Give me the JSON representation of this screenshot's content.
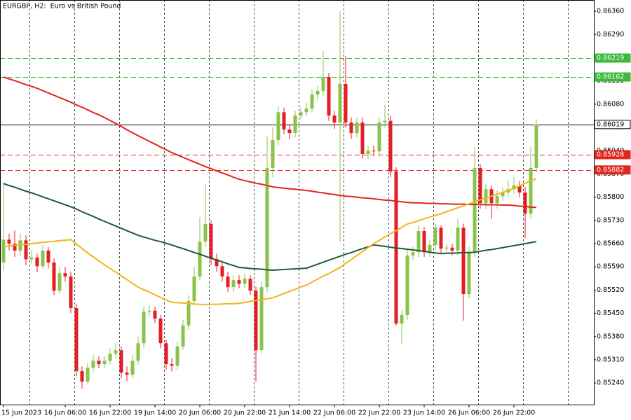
{
  "chart_data": {
    "type": "candlestick",
    "title": "EURGBP, H2:  Euro vs British Pound",
    "categories": [
      "15 Jun 2023",
      null,
      null,
      null,
      null,
      null,
      null,
      null,
      null,
      null,
      null,
      "16 Jun 06:00",
      null,
      null,
      null,
      null,
      null,
      null,
      null,
      "16 Jun 22:00",
      null,
      null,
      null,
      null,
      null,
      null,
      null,
      "19 Jun 14:00",
      null,
      null,
      null,
      null,
      null,
      null,
      null,
      "20 Jun 06:00",
      null,
      null,
      null,
      null,
      null,
      null,
      null,
      "20 Jun 22:00",
      null,
      null,
      null,
      null,
      null,
      null,
      null,
      "21 Jun 14:00",
      null,
      null,
      null,
      null,
      null,
      null,
      null,
      "22 Jun 06:00",
      null,
      null,
      null,
      null,
      null,
      null,
      null,
      "22 Jun 22:00",
      null,
      null,
      null,
      null,
      null,
      null,
      null,
      "23 Jun 14:00",
      null,
      null,
      null,
      null,
      null,
      null,
      null,
      "26 Jun 06:00",
      null,
      null,
      null,
      null,
      null,
      null,
      null,
      "26 Jun 22:00",
      null,
      null,
      null,
      null
    ],
    "open": [
      0.85603,
      0.85672,
      0.8566,
      0.85639,
      0.8567,
      0.85613,
      0.85618,
      0.85592,
      0.85639,
      0.85603,
      0.85518,
      0.85571,
      0.85561,
      0.85466,
      0.85276,
      0.85244,
      0.85286,
      0.85307,
      0.85297,
      0.85307,
      0.85328,
      0.85339,
      0.85271,
      0.85265,
      0.85307,
      0.8536,
      0.85455,
      0.85458,
      0.85434,
      0.8536,
      0.85297,
      0.85292,
      0.8535,
      0.85413,
      0.85487,
      0.85561,
      0.85666,
      0.85719,
      0.85613,
      0.85592,
      0.85561,
      0.85529,
      0.8555,
      0.85539,
      0.85554,
      0.85518,
      0.85339,
      0.85529,
      0.85888,
      0.85972,
      0.86056,
      0.86004,
      0.85993,
      0.86046,
      0.86056,
      0.86067,
      0.86109,
      0.8612,
      0.86162,
      0.86046,
      0.86025,
      0.86141,
      0.86025,
      0.85993,
      0.86025,
      0.8593,
      0.8594,
      0.85938,
      0.86025,
      0.8603,
      0.85877,
      0.85419,
      0.85445,
      0.85624,
      0.85634,
      0.85698,
      0.85634,
      0.85656,
      0.85708,
      0.85645,
      0.85648,
      0.85639,
      0.85708,
      0.85508,
      0.85634,
      0.85888,
      0.85782,
      0.85824,
      0.85782,
      0.85803,
      0.85814,
      0.85824,
      0.85835,
      0.85814,
      0.8575,
      0.85888
    ],
    "high": [
      0.85841,
      0.8569,
      0.857,
      0.8569,
      0.85685,
      0.8564,
      0.8563,
      0.85655,
      0.8565,
      0.85615,
      0.8559,
      0.8559,
      0.85575,
      0.8548,
      0.8529,
      0.853,
      0.85325,
      0.8532,
      0.8532,
      0.85345,
      0.8536,
      0.8535,
      0.8529,
      0.85325,
      0.8538,
      0.8547,
      0.85475,
      0.8547,
      0.85445,
      0.8537,
      0.85315,
      0.85365,
      0.8543,
      0.85505,
      0.8559,
      0.8574,
      0.85841,
      0.8573,
      0.8563,
      0.85605,
      0.85575,
      0.85565,
      0.85565,
      0.8557,
      0.85565,
      0.8553,
      0.85545,
      0.85983,
      0.8601,
      0.86075,
      0.8607,
      0.8602,
      0.8606,
      0.8607,
      0.86085,
      0.86125,
      0.86135,
      0.8624,
      0.86175,
      0.8606,
      0.8636,
      0.86225,
      0.8604,
      0.8604,
      0.8604,
      0.85955,
      0.85955,
      0.8604,
      0.86078,
      0.86045,
      0.8589,
      0.8546,
      0.8564,
      0.8565,
      0.85715,
      0.8571,
      0.8567,
      0.8572,
      0.85715,
      0.8566,
      0.8566,
      0.85735,
      0.8572,
      0.8565,
      0.85951,
      0.859,
      0.8584,
      0.85835,
      0.8582,
      0.8583,
      0.8585,
      0.8586,
      0.8585,
      0.8583,
      0.85951,
      0.86035
    ],
    "low": [
      0.8558,
      0.8564,
      0.8562,
      0.85625,
      0.85595,
      0.85598,
      0.85575,
      0.85585,
      0.85585,
      0.85505,
      0.8551,
      0.85545,
      0.8545,
      0.8526,
      0.85223,
      0.85235,
      0.85275,
      0.85285,
      0.85285,
      0.85295,
      0.85315,
      0.85255,
      0.85245,
      0.85255,
      0.85295,
      0.85345,
      0.8544,
      0.8542,
      0.85345,
      0.8528,
      0.85275,
      0.8528,
      0.8534,
      0.854,
      0.85475,
      0.8555,
      0.8565,
      0.85595,
      0.85575,
      0.85545,
      0.85515,
      0.85515,
      0.85525,
      0.85525,
      0.85505,
      0.85244,
      0.8533,
      0.85515,
      0.8586,
      0.85955,
      0.8599,
      0.85975,
      0.8598,
      0.86035,
      0.86045,
      0.86055,
      0.86095,
      0.86105,
      0.8603,
      0.86005,
      0.85666,
      0.8601,
      0.85975,
      0.8598,
      0.85915,
      0.85915,
      0.85925,
      0.85925,
      0.8601,
      0.8586,
      0.85413,
      0.85356,
      0.8543,
      0.8561,
      0.8562,
      0.8562,
      0.8562,
      0.8564,
      0.8563,
      0.85635,
      0.85625,
      0.85625,
      0.85428,
      0.85495,
      0.8562,
      0.85765,
      0.85765,
      0.85735,
      0.85765,
      0.8579,
      0.858,
      0.8581,
      0.858,
      0.85677,
      0.85735,
      0.85875
    ],
    "close": [
      0.85672,
      0.8566,
      0.85639,
      0.8567,
      0.85613,
      0.85618,
      0.85592,
      0.85639,
      0.85603,
      0.85518,
      0.85571,
      0.85561,
      0.85466,
      0.85276,
      0.85244,
      0.85286,
      0.85307,
      0.85297,
      0.85307,
      0.85328,
      0.85339,
      0.85271,
      0.85265,
      0.85307,
      0.8536,
      0.85455,
      0.85458,
      0.85434,
      0.8536,
      0.85297,
      0.85292,
      0.8535,
      0.85413,
      0.85487,
      0.85561,
      0.85666,
      0.85719,
      0.85613,
      0.85592,
      0.85561,
      0.85529,
      0.8555,
      0.85539,
      0.85554,
      0.85518,
      0.85339,
      0.85529,
      0.85888,
      0.85972,
      0.86056,
      0.86004,
      0.85993,
      0.86046,
      0.86056,
      0.86067,
      0.86109,
      0.8612,
      0.86162,
      0.86046,
      0.86025,
      0.86141,
      0.86025,
      0.85993,
      0.86025,
      0.8593,
      0.8594,
      0.85938,
      0.86025,
      0.8603,
      0.85877,
      0.85419,
      0.85445,
      0.85624,
      0.85634,
      0.85698,
      0.85634,
      0.85656,
      0.85708,
      0.85645,
      0.85648,
      0.85639,
      0.85708,
      0.85508,
      0.85634,
      0.85888,
      0.85782,
      0.85824,
      0.85782,
      0.85803,
      0.85814,
      0.85824,
      0.85835,
      0.85814,
      0.8575,
      0.85888,
      0.86019
    ],
    "up_color": "#8bc34a",
    "down_color": "#e41e26",
    "series": [
      {
        "color": "#e0261f",
        "values": [
          0.86162,
          0.86156,
          0.86151,
          0.86145,
          0.86139,
          0.86134,
          0.86128,
          0.86121,
          0.86114,
          0.86107,
          0.861,
          0.86093,
          0.86086,
          0.86078,
          0.86071,
          0.86063,
          0.86055,
          0.86048,
          0.8604,
          0.86031,
          0.86022,
          0.86013,
          0.86003,
          0.85994,
          0.85985,
          0.85977,
          0.85968,
          0.8596,
          0.85951,
          0.85943,
          0.85934,
          0.85927,
          0.8592,
          0.85913,
          0.85906,
          0.85899,
          0.85892,
          0.85886,
          0.85879,
          0.85873,
          0.85867,
          0.8586,
          0.85854,
          0.8585,
          0.85846,
          0.85842,
          0.85839,
          0.85835,
          0.85831,
          0.85829,
          0.85827,
          0.85825,
          0.85824,
          0.85822,
          0.8582,
          0.85818,
          0.85815,
          0.85813,
          0.8581,
          0.85808,
          0.85805,
          0.85803,
          0.85802,
          0.858,
          0.85798,
          0.85797,
          0.85795,
          0.85793,
          0.85791,
          0.8579,
          0.85788,
          0.85786,
          0.85784,
          0.85783,
          0.85783,
          0.85782,
          0.85781,
          0.85781,
          0.8578,
          0.8578,
          0.85779,
          0.85779,
          0.85779,
          0.85778,
          0.85778,
          0.85778,
          0.85777,
          0.85777,
          0.85777,
          0.85776,
          0.85776,
          0.85775,
          0.85773,
          0.85772,
          0.8577,
          0.85769
        ]
      },
      {
        "color": "#1e5a3c",
        "values": [
          0.85841,
          0.85835,
          0.8583,
          0.85824,
          0.85818,
          0.85813,
          0.85807,
          0.85801,
          0.85795,
          0.85789,
          0.85783,
          0.85777,
          0.85771,
          0.85764,
          0.85756,
          0.85749,
          0.85742,
          0.85734,
          0.85727,
          0.8572,
          0.85713,
          0.85706,
          0.85699,
          0.85692,
          0.85685,
          0.8568,
          0.85675,
          0.8567,
          0.85666,
          0.85661,
          0.85656,
          0.8565,
          0.85645,
          0.85639,
          0.85633,
          0.85628,
          0.85622,
          0.85616,
          0.85611,
          0.85605,
          0.85599,
          0.85594,
          0.85588,
          0.85587,
          0.85585,
          0.85584,
          0.85583,
          0.85581,
          0.8558,
          0.85581,
          0.85582,
          0.85583,
          0.85584,
          0.85585,
          0.85586,
          0.85592,
          0.85598,
          0.85604,
          0.8561,
          0.85616,
          0.85622,
          0.85628,
          0.85633,
          0.85639,
          0.85645,
          0.8565,
          0.85656,
          0.85654,
          0.85652,
          0.85649,
          0.85647,
          0.85645,
          0.85643,
          0.85641,
          0.85639,
          0.85637,
          0.85634,
          0.85632,
          0.8563,
          0.85631,
          0.85631,
          0.85632,
          0.85633,
          0.85633,
          0.85634,
          0.85637,
          0.8564,
          0.85642,
          0.85645,
          0.85648,
          0.85651,
          0.85654,
          0.85657,
          0.8566,
          0.85663,
          0.85666
        ]
      },
      {
        "color": "#f2b51b",
        "values": [
          0.85651,
          0.85653,
          0.85655,
          0.85657,
          0.85658,
          0.8566,
          0.85662,
          0.85664,
          0.85665,
          0.85667,
          0.85669,
          0.8567,
          0.85672,
          0.85659,
          0.85645,
          0.85632,
          0.8562,
          0.85608,
          0.85596,
          0.85585,
          0.85574,
          0.85563,
          0.85552,
          0.8554,
          0.85529,
          0.85521,
          0.85514,
          0.85506,
          0.85498,
          0.8549,
          0.85483,
          0.85482,
          0.85481,
          0.8548,
          0.85478,
          0.85477,
          0.85476,
          0.85477,
          0.85477,
          0.85478,
          0.85479,
          0.85479,
          0.8548,
          0.85483,
          0.85486,
          0.85489,
          0.85491,
          0.85494,
          0.85497,
          0.85503,
          0.8551,
          0.85516,
          0.85522,
          0.85529,
          0.85535,
          0.85544,
          0.85553,
          0.85562,
          0.8557,
          0.85579,
          0.85588,
          0.856,
          0.85612,
          0.85624,
          0.85636,
          0.85648,
          0.8566,
          0.8567,
          0.8568,
          0.8569,
          0.85699,
          0.85709,
          0.85719,
          0.85724,
          0.85729,
          0.85735,
          0.8574,
          0.85745,
          0.8575,
          0.85756,
          0.85762,
          0.85768,
          0.85774,
          0.8578,
          0.85786,
          0.85792,
          0.85797,
          0.85803,
          0.85809,
          0.85814,
          0.8582,
          0.85827,
          0.85834,
          0.85842,
          0.85849,
          0.85856
        ]
      }
    ],
    "levels": [
      {
        "value": 0.86219,
        "label": "0.86219",
        "color": "#3cb93c",
        "style": "dashed"
      },
      {
        "value": 0.86162,
        "label": "0.86162",
        "color": "#3cb93c",
        "style": "dashed"
      },
      {
        "value": 0.86019,
        "label": "0.86019",
        "color": "#000000",
        "style": "solid"
      },
      {
        "value": 0.85928,
        "label": "0.85928",
        "color": "#e0261f",
        "style": "dashed"
      },
      {
        "value": 0.85882,
        "label": "0.85882",
        "color": "#e0261f",
        "style": "dashed"
      }
    ],
    "ylim": [
      0.85175,
      0.86394
    ],
    "yticks": [
      {
        "value": 0.8524,
        "label": "0.85240"
      },
      {
        "value": 0.8531,
        "label": "0.85310"
      },
      {
        "value": 0.8538,
        "label": "0.85380"
      },
      {
        "value": 0.8545,
        "label": "0.85450"
      },
      {
        "value": 0.8552,
        "label": "0.85520"
      },
      {
        "value": 0.8559,
        "label": "0.85590"
      },
      {
        "value": 0.8566,
        "label": "0.85660"
      },
      {
        "value": 0.8573,
        "label": "0.85730"
      },
      {
        "value": 0.858,
        "label": "0.85800"
      },
      {
        "value": 0.8587,
        "label": "0.85870"
      },
      {
        "value": 0.8594,
        "label": "0.85940"
      },
      {
        "value": 0.8601,
        "label": "0.86010"
      },
      {
        "value": 0.8608,
        "label": "0.86080"
      },
      {
        "value": 0.8615,
        "label": "0.86150"
      },
      {
        "value": 0.8622,
        "label": "0.86220"
      },
      {
        "value": 0.8629,
        "label": "0.86290"
      },
      {
        "value": 0.8636,
        "label": "0.86360"
      }
    ]
  }
}
